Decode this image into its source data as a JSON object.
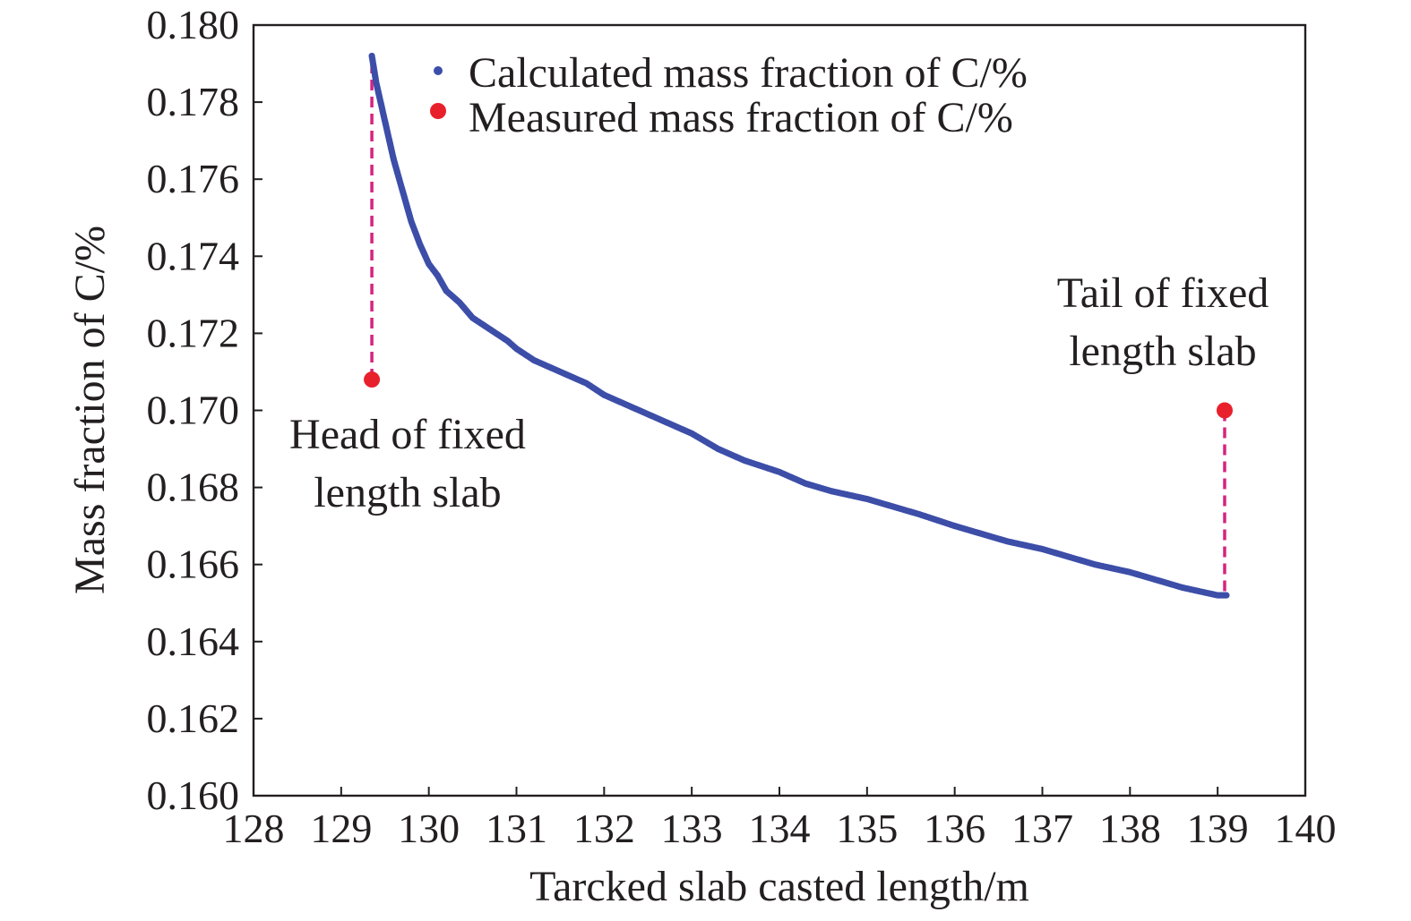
{
  "chart_data": {
    "type": "scatter",
    "title": "",
    "xlabel": "Tarcked slab casted length/m",
    "ylabel": "Mass fraction of C/%",
    "xlim": [
      128,
      140
    ],
    "ylim": [
      0.16,
      0.18
    ],
    "xticks": [
      "128",
      "129",
      "130",
      "131",
      "132",
      "133",
      "134",
      "135",
      "136",
      "137",
      "138",
      "139",
      "140"
    ],
    "yticks": [
      "0.160",
      "0.162",
      "0.164",
      "0.166",
      "0.168",
      "0.170",
      "0.172",
      "0.174",
      "0.176",
      "0.178",
      "0.180"
    ],
    "grid": false,
    "legend_position": "top",
    "series": [
      {
        "name": "Calculated mass fraction of C/%",
        "color": "#3c4ea8",
        "marker": "small-dot",
        "x": [
          129.35,
          129.4,
          129.5,
          129.6,
          129.7,
          129.8,
          129.9,
          130.0,
          130.1,
          130.2,
          130.35,
          130.5,
          130.7,
          130.9,
          131.0,
          131.2,
          131.5,
          131.8,
          132.0,
          132.3,
          132.6,
          133.0,
          133.3,
          133.6,
          134.0,
          134.3,
          134.6,
          135.0,
          135.3,
          135.6,
          136.0,
          136.3,
          136.6,
          137.0,
          137.3,
          137.6,
          138.0,
          138.3,
          138.6,
          139.0,
          139.1
        ],
        "y": [
          0.1792,
          0.1785,
          0.1775,
          0.1765,
          0.1757,
          0.1749,
          0.1743,
          0.1738,
          0.1735,
          0.1731,
          0.1728,
          0.1724,
          0.1721,
          0.1718,
          0.1716,
          0.1713,
          0.171,
          0.1707,
          0.1704,
          0.1701,
          0.1698,
          0.1694,
          0.169,
          0.1687,
          0.1684,
          0.1681,
          0.1679,
          0.1677,
          0.1675,
          0.1673,
          0.167,
          0.1668,
          0.1666,
          0.1664,
          0.1662,
          0.166,
          0.1658,
          0.1656,
          0.1654,
          0.1652,
          0.1652
        ]
      },
      {
        "name": "Measured mass fraction of C/%",
        "color": "#e8202c",
        "marker": "large-dot",
        "x": [
          129.35,
          139.08
        ],
        "y": [
          0.1708,
          0.17
        ]
      }
    ],
    "annotations": [
      {
        "id": "head",
        "text_lines": [
          "Head of fixed",
          "length slab"
        ],
        "x": 129.35,
        "y_from": 0.1708,
        "y_to": 0.1792
      },
      {
        "id": "tail",
        "text_lines": [
          "Tail of fixed",
          "length slab"
        ],
        "x": 139.08,
        "y_from": 0.17,
        "y_to": 0.1652
      }
    ],
    "connector_color": "#d6237e"
  }
}
